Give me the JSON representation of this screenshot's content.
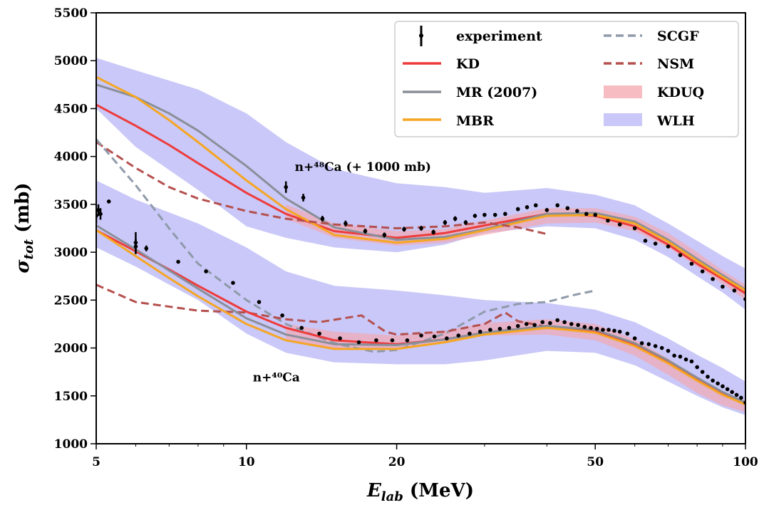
{
  "chart_data": {
    "type": "line",
    "xlabel": "E_lab (MeV)",
    "ylabel": "σ_tot (mb)",
    "x_scale": "log",
    "xlim": [
      5,
      100
    ],
    "ylim": [
      1000,
      5500
    ],
    "x_ticks": [
      5,
      10,
      20,
      50,
      100
    ],
    "y_ticks": [
      1000,
      1500,
      2000,
      2500,
      3000,
      3500,
      4000,
      4500,
      5000,
      5500
    ],
    "grid": false,
    "legend_position": "top-right",
    "colors": {
      "experiment": "#000000",
      "KD": "#ee3b3b",
      "MR (2007)": "#8a8f99",
      "MBR": "#f5a623",
      "SCGF": "#8f9aaa",
      "NSM": "#b5504e",
      "KDUQ": "#f4a6ad",
      "WLH": "#c9c8f8"
    },
    "legend": [
      "experiment",
      "KD",
      "MR (2007)",
      "MBR",
      "SCGF",
      "NSM",
      "KDUQ",
      "WLH"
    ],
    "annotations": [
      {
        "text": "n+⁴⁸Ca (+ 1000 mb)",
        "x": 12.5,
        "y": 3850
      },
      {
        "text": "n+⁴⁰Ca",
        "x": 10.3,
        "y": 1650
      }
    ],
    "bands": [
      {
        "name": "WLH",
        "target": "48Ca",
        "x": [
          5,
          6,
          8,
          10,
          12,
          15,
          20,
          25,
          30,
          40,
          50,
          60,
          70,
          80,
          90,
          100
        ],
        "lower": [
          4500,
          4100,
          3650,
          3270,
          3150,
          3050,
          3000,
          3080,
          3200,
          3270,
          3250,
          3130,
          2950,
          2750,
          2580,
          2400
        ],
        "upper": [
          5030,
          4900,
          4700,
          4450,
          4150,
          3870,
          3720,
          3680,
          3620,
          3670,
          3600,
          3490,
          3300,
          3120,
          2960,
          2830
        ]
      },
      {
        "name": "KDUQ",
        "target": "48Ca",
        "x": [
          12,
          15,
          20,
          25,
          30,
          40,
          50,
          60,
          70,
          80,
          90,
          100
        ],
        "lower": [
          3350,
          3150,
          3070,
          3100,
          3180,
          3300,
          3310,
          3220,
          3050,
          2850,
          2670,
          2500
        ],
        "upper": [
          3500,
          3300,
          3220,
          3240,
          3330,
          3460,
          3460,
          3370,
          3200,
          3000,
          2810,
          2660
        ]
      },
      {
        "name": "WLH",
        "target": "40Ca",
        "x": [
          5,
          6,
          8,
          10,
          12,
          15,
          20,
          25,
          30,
          40,
          50,
          60,
          70,
          80,
          90,
          100
        ],
        "lower": [
          3050,
          2850,
          2500,
          2150,
          1950,
          1850,
          1830,
          1830,
          1870,
          1970,
          1950,
          1820,
          1650,
          1500,
          1380,
          1300
        ],
        "upper": [
          3750,
          3550,
          3300,
          3050,
          2800,
          2650,
          2600,
          2550,
          2500,
          2470,
          2400,
          2270,
          2100,
          1930,
          1790,
          1650
        ]
      },
      {
        "name": "KDUQ",
        "target": "40Ca",
        "x": [
          12,
          15,
          20,
          25,
          30,
          40,
          50,
          60,
          70,
          80,
          90,
          100
        ],
        "lower": [
          2080,
          2000,
          1990,
          2050,
          2130,
          2140,
          2080,
          1920,
          1720,
          1530,
          1400,
          1330
        ],
        "upper": [
          2250,
          2170,
          2130,
          2180,
          2260,
          2300,
          2250,
          2090,
          1890,
          1690,
          1540,
          1450
        ]
      }
    ],
    "series": [
      {
        "name": "KD",
        "target": "48Ca",
        "style": "solid",
        "x": [
          5,
          6,
          7,
          8,
          10,
          12,
          15,
          20,
          25,
          30,
          40,
          50,
          60,
          70,
          80,
          90,
          100
        ],
        "y": [
          4540,
          4320,
          4120,
          3930,
          3620,
          3400,
          3220,
          3150,
          3200,
          3280,
          3400,
          3380,
          3270,
          3080,
          2880,
          2720,
          2570
        ]
      },
      {
        "name": "MR (2007)",
        "target": "48Ca",
        "style": "solid",
        "x": [
          5,
          6,
          7,
          8,
          10,
          12,
          15,
          20,
          25,
          30,
          40,
          50,
          60,
          70,
          80,
          90,
          100
        ],
        "y": [
          4750,
          4620,
          4450,
          4270,
          3900,
          3560,
          3260,
          3130,
          3160,
          3240,
          3400,
          3410,
          3320,
          3130,
          2930,
          2760,
          2610
        ]
      },
      {
        "name": "MBR",
        "target": "48Ca",
        "style": "solid",
        "x": [
          5,
          6,
          7,
          8,
          10,
          12,
          15,
          20,
          25,
          30,
          40,
          50,
          60,
          70,
          80,
          90,
          100
        ],
        "y": [
          4830,
          4620,
          4380,
          4150,
          3750,
          3450,
          3180,
          3100,
          3140,
          3230,
          3380,
          3390,
          3300,
          3110,
          2910,
          2740,
          2600
        ]
      },
      {
        "name": "NSM",
        "target": "48Ca",
        "style": "dashed",
        "x": [
          5,
          6,
          7,
          8,
          10,
          12,
          15,
          20,
          25,
          30,
          35,
          40
        ],
        "y": [
          4150,
          3880,
          3680,
          3560,
          3430,
          3350,
          3290,
          3250,
          3270,
          3310,
          3260,
          3190
        ]
      },
      {
        "name": "SCGF",
        "target": "40Ca",
        "style": "dashed",
        "x": [
          5,
          6,
          7,
          8,
          10,
          12,
          15,
          18,
          20,
          25,
          30,
          35,
          40,
          45,
          50
        ],
        "y": [
          4180,
          3700,
          3250,
          2880,
          2500,
          2250,
          2050,
          1960,
          1980,
          2150,
          2380,
          2460,
          2480,
          2550,
          2600
        ]
      },
      {
        "name": "NSM",
        "target": "40Ca",
        "style": "dashed",
        "x": [
          5,
          6,
          8,
          10,
          12,
          14,
          17,
          19,
          20,
          25,
          30,
          33,
          35,
          40
        ],
        "y": [
          2660,
          2480,
          2390,
          2370,
          2300,
          2270,
          2340,
          2170,
          2140,
          2170,
          2250,
          2370,
          2280,
          2220
        ]
      },
      {
        "name": "KD",
        "target": "40Ca",
        "style": "solid",
        "x": [
          5,
          6,
          7,
          8,
          10,
          12,
          15,
          20,
          25,
          30,
          40,
          50,
          60,
          70,
          80,
          90,
          100
        ],
        "y": [
          3230,
          3010,
          2820,
          2650,
          2380,
          2210,
          2080,
          2040,
          2090,
          2160,
          2230,
          2170,
          2030,
          1850,
          1670,
          1520,
          1420
        ]
      },
      {
        "name": "MR (2007)",
        "target": "40Ca",
        "style": "solid",
        "x": [
          5,
          6,
          7,
          8,
          10,
          12,
          15,
          20,
          25,
          30,
          40,
          50,
          60,
          70,
          80,
          90,
          100
        ],
        "y": [
          3280,
          3030,
          2810,
          2620,
          2310,
          2140,
          2040,
          2030,
          2090,
          2160,
          2230,
          2190,
          2050,
          1870,
          1690,
          1540,
          1430
        ]
      },
      {
        "name": "MBR",
        "target": "40Ca",
        "style": "solid",
        "x": [
          5,
          6,
          7,
          8,
          10,
          12,
          15,
          20,
          25,
          30,
          40,
          50,
          60,
          70,
          80,
          90,
          100
        ],
        "y": [
          3230,
          2960,
          2730,
          2540,
          2250,
          2080,
          1990,
          1990,
          2060,
          2140,
          2210,
          2160,
          2020,
          1840,
          1660,
          1510,
          1410
        ]
      }
    ],
    "experiment": [
      {
        "target": "48Ca",
        "x": [
          5,
          5.05,
          5.1,
          5.3,
          6,
          12,
          13,
          14.2,
          15.8,
          17.3,
          18.9,
          20.7,
          22.4,
          23.7,
          25,
          26.2,
          27.5,
          28.7,
          30,
          31.5,
          33,
          35,
          36.5,
          38,
          40,
          42,
          44,
          46,
          48,
          50,
          53,
          56,
          60,
          63,
          66,
          70,
          74,
          78,
          82,
          86,
          90,
          95,
          100
        ],
        "y": [
          3380,
          3440,
          3400,
          3530,
          3060,
          3680,
          3570,
          3350,
          3300,
          3220,
          3180,
          3240,
          3250,
          3210,
          3310,
          3350,
          3310,
          3380,
          3390,
          3390,
          3400,
          3450,
          3470,
          3490,
          3440,
          3490,
          3460,
          3430,
          3400,
          3390,
          3330,
          3290,
          3250,
          3120,
          3090,
          3060,
          2970,
          2880,
          2800,
          2720,
          2640,
          2600,
          2510
        ],
        "err": [
          80,
          60,
          60,
          0,
          80,
          60,
          40,
          30,
          30,
          25,
          25,
          25,
          25,
          25,
          25,
          25,
          25,
          20,
          20,
          20,
          20,
          20,
          20,
          20,
          20,
          20,
          20,
          20,
          20,
          20,
          0,
          0,
          0,
          0,
          0,
          0,
          0,
          0,
          0,
          0,
          0,
          0,
          0
        ]
      },
      {
        "target": "40Ca",
        "x": [
          6,
          6.3,
          7.3,
          8.3,
          9.4,
          10.6,
          11.8,
          12.9,
          14,
          15.4,
          16.8,
          18.2,
          19.6,
          21,
          22.4,
          23.8,
          25.2,
          26.6,
          28,
          29.4,
          30.8,
          32.2,
          33.6,
          35,
          36.4,
          37.8,
          39.2,
          40.6,
          42,
          43.4,
          44.8,
          46.2,
          47.6,
          49,
          50.4,
          51.8,
          53.2,
          54.6,
          56,
          58,
          60,
          62,
          64,
          66,
          68,
          70,
          72,
          74,
          76,
          78,
          80,
          82,
          84,
          86,
          88,
          90,
          92,
          94,
          96,
          98,
          100
        ],
        "y": [
          3100,
          3040,
          2900,
          2800,
          2680,
          2480,
          2340,
          2210,
          2150,
          2100,
          2060,
          2080,
          2080,
          2080,
          2130,
          2120,
          2100,
          2130,
          2150,
          2170,
          2190,
          2200,
          2210,
          2230,
          2250,
          2240,
          2270,
          2260,
          2290,
          2270,
          2250,
          2240,
          2220,
          2210,
          2200,
          2190,
          2190,
          2180,
          2170,
          2150,
          2100,
          2050,
          2040,
          2020,
          2000,
          1970,
          1920,
          1910,
          1880,
          1860,
          1800,
          1750,
          1700,
          1660,
          1630,
          1600,
          1570,
          1540,
          1510,
          1480,
          1430
        ],
        "err": [
          110,
          30,
          0,
          0,
          0,
          0,
          0,
          0,
          0,
          0,
          0,
          0,
          0,
          0,
          0,
          0,
          0,
          0,
          0,
          0,
          0,
          0,
          0,
          0,
          0,
          0,
          0,
          0,
          0,
          0,
          0,
          0,
          0,
          0,
          0,
          0,
          0,
          0,
          0,
          0,
          0,
          0,
          0,
          0,
          0,
          0,
          0,
          0,
          0,
          0,
          0,
          0,
          0,
          0,
          0,
          0,
          0,
          0,
          0,
          0,
          0
        ]
      }
    ]
  }
}
